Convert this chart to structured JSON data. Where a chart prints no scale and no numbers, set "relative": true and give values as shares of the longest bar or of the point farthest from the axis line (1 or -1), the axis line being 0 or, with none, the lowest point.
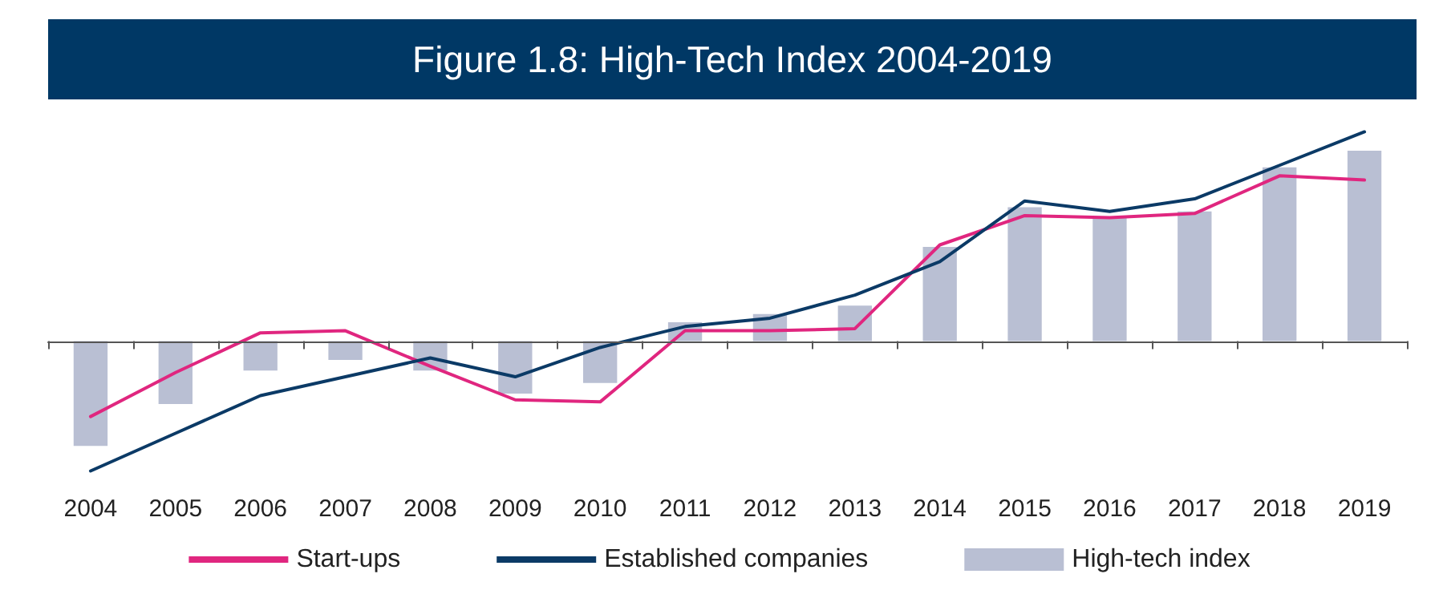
{
  "chart_data": {
    "type": "bar",
    "title": "Figure 1.8: High-Tech Index 2004-2019",
    "relative": true,
    "categories": [
      "2004",
      "2005",
      "2006",
      "2007",
      "2008",
      "2009",
      "2010",
      "2011",
      "2012",
      "2013",
      "2014",
      "2015",
      "2016",
      "2017",
      "2018",
      "2019"
    ],
    "series": [
      {
        "name": "Start-ups",
        "type": "line",
        "color": "#e0267f",
        "values": [
          -0.36,
          -0.15,
          0.04,
          0.05,
          -0.12,
          -0.28,
          -0.29,
          0.05,
          0.05,
          0.06,
          0.46,
          0.6,
          0.59,
          0.61,
          0.79,
          0.77
        ]
      },
      {
        "name": "Established companies",
        "type": "line",
        "color": "#0b3a66",
        "values": [
          -0.62,
          -0.44,
          -0.26,
          -0.17,
          -0.08,
          -0.17,
          -0.03,
          0.07,
          0.11,
          0.22,
          0.38,
          0.67,
          0.62,
          0.68,
          0.84,
          1.0
        ]
      },
      {
        "name": "High-tech index",
        "type": "bar",
        "color": "#b9bfd3",
        "values": [
          -0.5,
          -0.3,
          -0.14,
          -0.09,
          -0.14,
          -0.25,
          -0.2,
          0.09,
          0.13,
          0.17,
          0.45,
          0.64,
          0.59,
          0.62,
          0.83,
          0.91
        ]
      }
    ],
    "legend": "bottom",
    "grid": false,
    "marker": "none",
    "line_style": "solid"
  }
}
